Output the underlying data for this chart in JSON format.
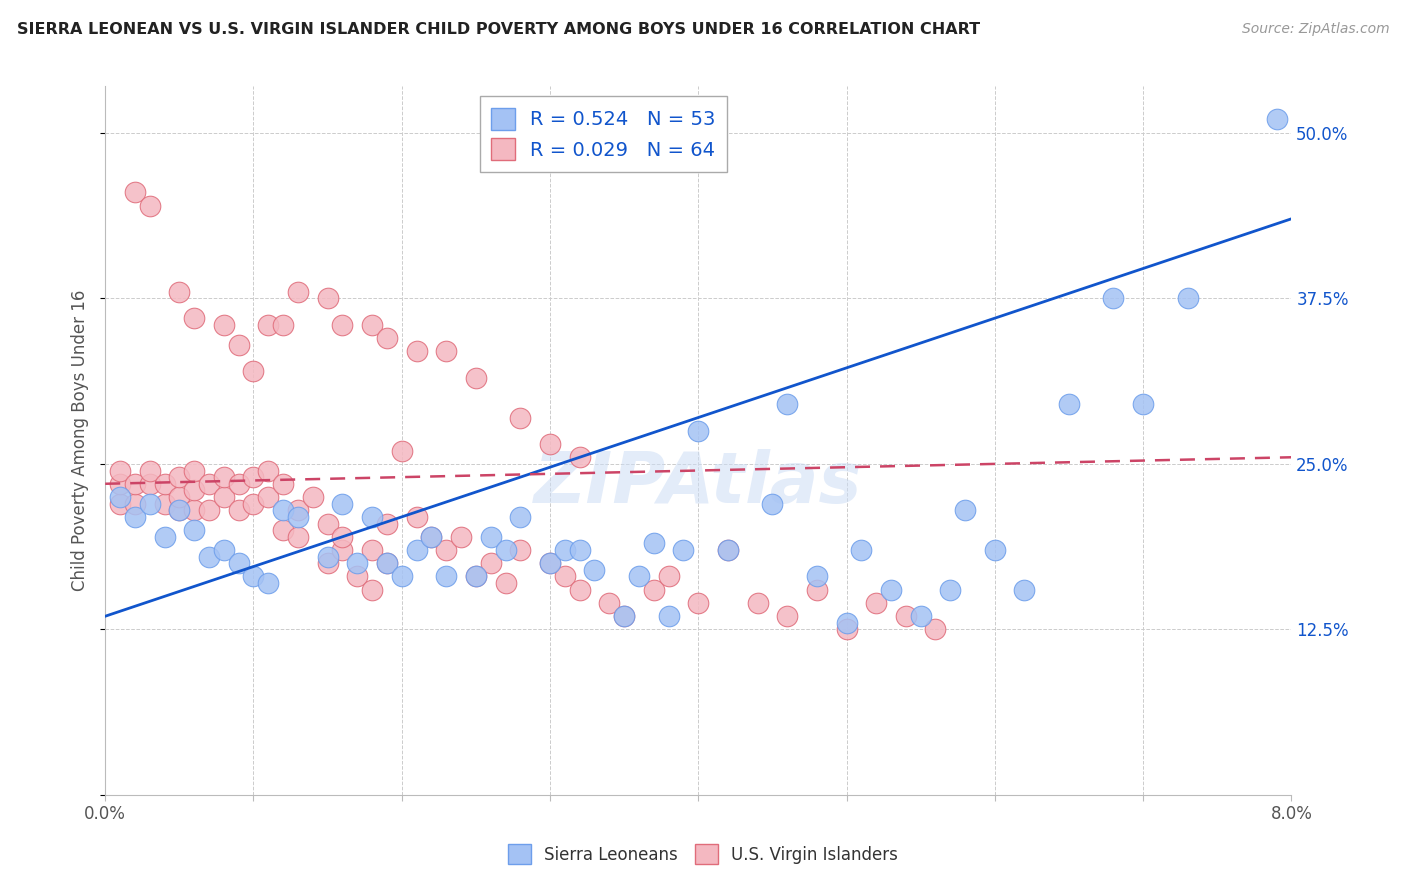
{
  "title": "SIERRA LEONEAN VS U.S. VIRGIN ISLANDER CHILD POVERTY AMONG BOYS UNDER 16 CORRELATION CHART",
  "source": "Source: ZipAtlas.com",
  "ylabel": "Child Poverty Among Boys Under 16",
  "xlim": [
    0.0,
    0.08
  ],
  "ylim": [
    0.0,
    0.535
  ],
  "xticks": [
    0.0,
    0.01,
    0.02,
    0.03,
    0.04,
    0.05,
    0.06,
    0.07,
    0.08
  ],
  "xticklabels": [
    "0.0%",
    "",
    "",
    "",
    "",
    "",
    "",
    "",
    "8.0%"
  ],
  "yticks": [
    0.0,
    0.125,
    0.25,
    0.375,
    0.5
  ],
  "yticklabels": [
    "",
    "12.5%",
    "25.0%",
    "37.5%",
    "50.0%"
  ],
  "blue_R": 0.524,
  "blue_N": 53,
  "pink_R": 0.029,
  "pink_N": 64,
  "blue_color": "#a4c2f4",
  "pink_color": "#f4b8c1",
  "blue_edge_color": "#6d9eeb",
  "pink_edge_color": "#e06c7a",
  "blue_line_color": "#1155cc",
  "pink_line_color": "#cc4466",
  "legend_label_blue": "Sierra Leoneans",
  "legend_label_pink": "U.S. Virgin Islanders",
  "watermark": "ZIPAtlas",
  "background_color": "#ffffff",
  "blue_line_x0": 0.0,
  "blue_line_y0": 0.135,
  "blue_line_x1": 0.08,
  "blue_line_y1": 0.435,
  "pink_line_x0": 0.0,
  "pink_line_x1": 0.08,
  "pink_line_y0": 0.235,
  "pink_line_y1": 0.255,
  "blue_x": [
    0.001,
    0.002,
    0.003,
    0.004,
    0.005,
    0.006,
    0.007,
    0.008,
    0.009,
    0.01,
    0.011,
    0.012,
    0.013,
    0.015,
    0.016,
    0.017,
    0.018,
    0.019,
    0.02,
    0.021,
    0.022,
    0.023,
    0.025,
    0.026,
    0.027,
    0.028,
    0.03,
    0.031,
    0.032,
    0.033,
    0.035,
    0.036,
    0.037,
    0.038,
    0.039,
    0.04,
    0.042,
    0.045,
    0.046,
    0.048,
    0.05,
    0.051,
    0.053,
    0.055,
    0.057,
    0.058,
    0.06,
    0.062,
    0.065,
    0.068,
    0.07,
    0.073,
    0.079
  ],
  "blue_y": [
    0.225,
    0.21,
    0.22,
    0.195,
    0.215,
    0.2,
    0.18,
    0.185,
    0.175,
    0.165,
    0.16,
    0.215,
    0.21,
    0.18,
    0.22,
    0.175,
    0.21,
    0.175,
    0.165,
    0.185,
    0.195,
    0.165,
    0.165,
    0.195,
    0.185,
    0.21,
    0.175,
    0.185,
    0.185,
    0.17,
    0.135,
    0.165,
    0.19,
    0.135,
    0.185,
    0.275,
    0.185,
    0.22,
    0.295,
    0.165,
    0.13,
    0.185,
    0.155,
    0.135,
    0.155,
    0.215,
    0.185,
    0.155,
    0.295,
    0.375,
    0.295,
    0.375,
    0.51
  ],
  "pink_x": [
    0.001,
    0.001,
    0.001,
    0.002,
    0.002,
    0.003,
    0.003,
    0.004,
    0.004,
    0.005,
    0.005,
    0.005,
    0.006,
    0.006,
    0.006,
    0.007,
    0.007,
    0.008,
    0.008,
    0.009,
    0.009,
    0.01,
    0.01,
    0.011,
    0.011,
    0.012,
    0.012,
    0.013,
    0.013,
    0.014,
    0.015,
    0.015,
    0.016,
    0.016,
    0.017,
    0.018,
    0.018,
    0.019,
    0.019,
    0.02,
    0.021,
    0.022,
    0.023,
    0.024,
    0.025,
    0.026,
    0.027,
    0.028,
    0.03,
    0.031,
    0.032,
    0.034,
    0.035,
    0.037,
    0.038,
    0.04,
    0.042,
    0.044,
    0.046,
    0.048,
    0.05,
    0.052,
    0.054,
    0.056
  ],
  "pink_y": [
    0.22,
    0.235,
    0.245,
    0.22,
    0.235,
    0.235,
    0.245,
    0.22,
    0.235,
    0.215,
    0.225,
    0.24,
    0.215,
    0.23,
    0.245,
    0.215,
    0.235,
    0.225,
    0.24,
    0.215,
    0.235,
    0.22,
    0.24,
    0.225,
    0.245,
    0.2,
    0.235,
    0.195,
    0.215,
    0.225,
    0.175,
    0.205,
    0.185,
    0.195,
    0.165,
    0.155,
    0.185,
    0.175,
    0.205,
    0.26,
    0.21,
    0.195,
    0.185,
    0.195,
    0.165,
    0.175,
    0.16,
    0.185,
    0.175,
    0.165,
    0.155,
    0.145,
    0.135,
    0.155,
    0.165,
    0.145,
    0.185,
    0.145,
    0.135,
    0.155,
    0.125,
    0.145,
    0.135,
    0.125
  ],
  "pink_outlier_x": [
    0.002,
    0.003,
    0.005,
    0.006,
    0.008,
    0.009,
    0.01,
    0.011,
    0.012,
    0.013,
    0.015,
    0.016,
    0.018,
    0.019,
    0.021,
    0.023,
    0.025,
    0.028,
    0.03,
    0.032
  ],
  "pink_outlier_y": [
    0.455,
    0.445,
    0.38,
    0.36,
    0.355,
    0.34,
    0.32,
    0.355,
    0.355,
    0.38,
    0.375,
    0.355,
    0.355,
    0.345,
    0.335,
    0.335,
    0.315,
    0.285,
    0.265,
    0.255
  ]
}
